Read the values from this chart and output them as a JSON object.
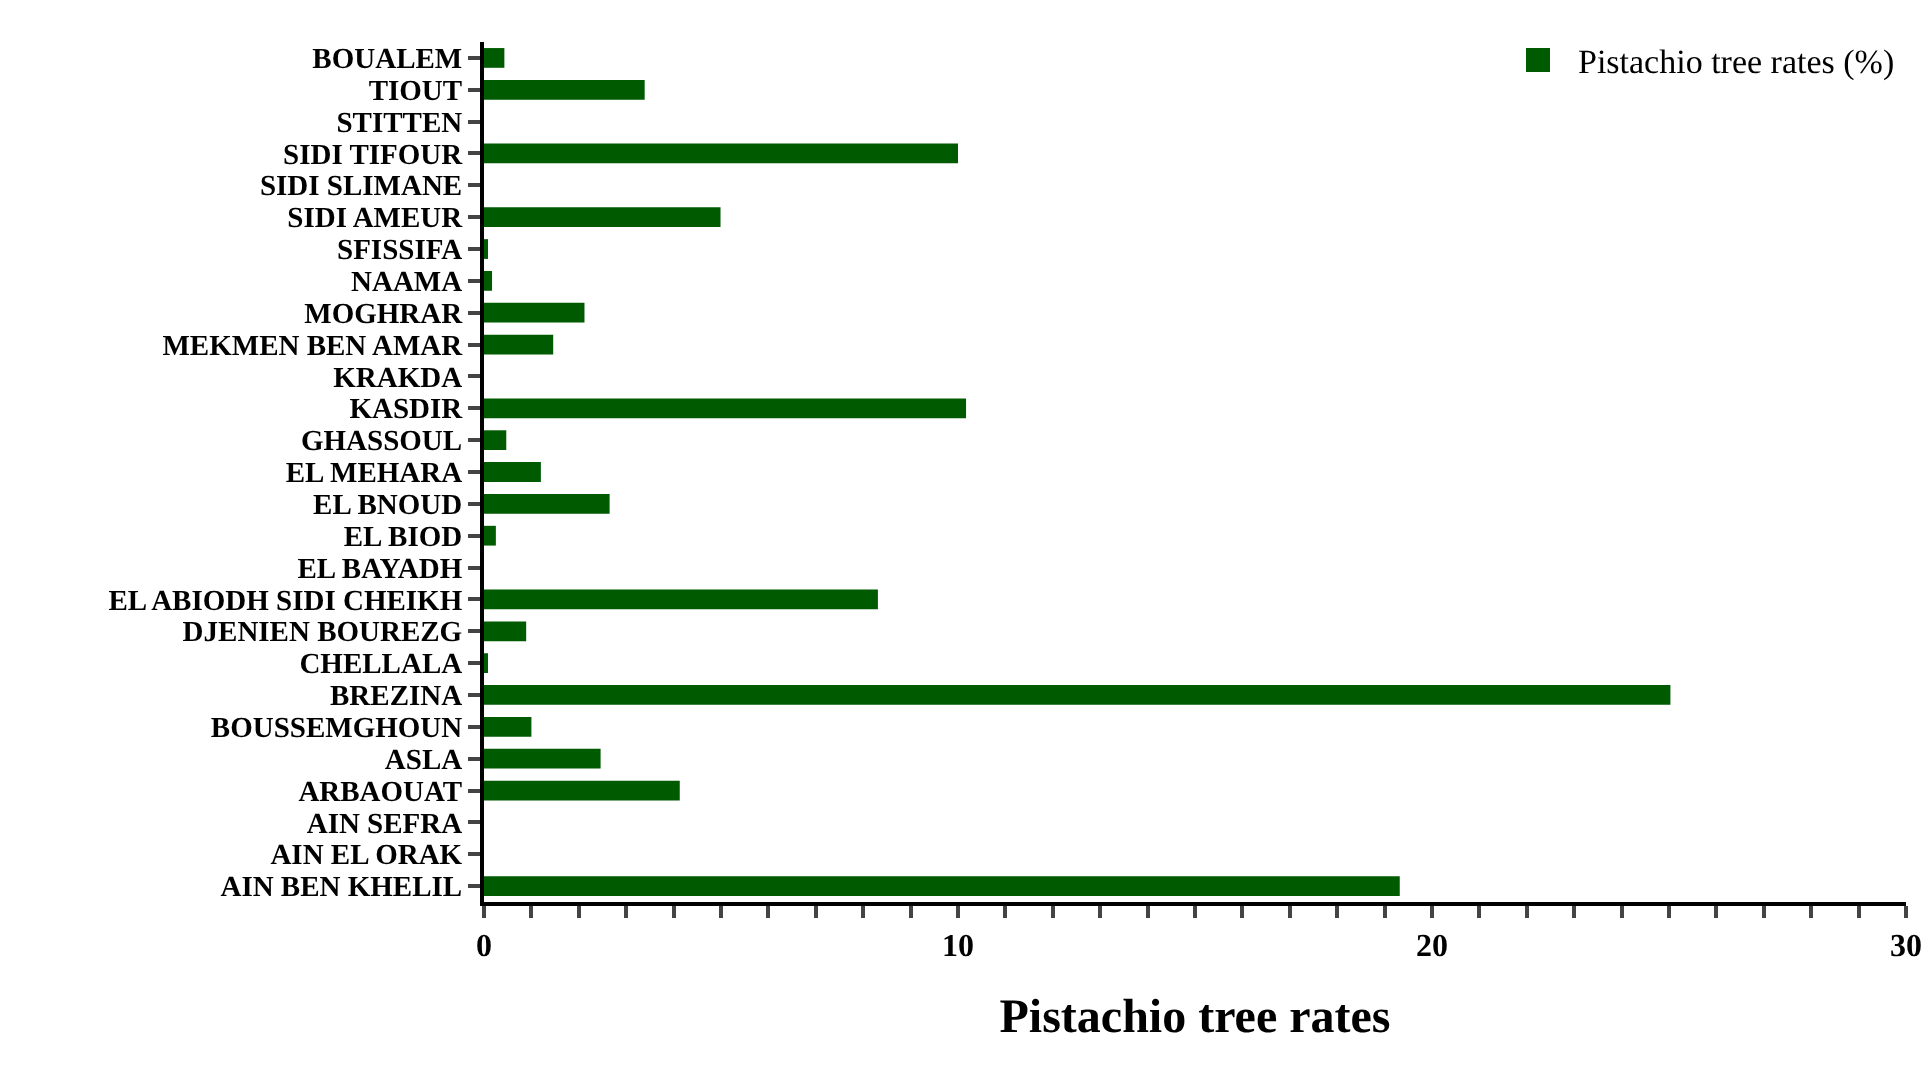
{
  "chart_data": {
    "type": "bar",
    "orientation": "horizontal",
    "xlabel": "Pistachio tree rates",
    "categories": [
      "BOUALEM",
      "TIOUT",
      "STITTEN",
      "SIDI TIFOUR",
      "SIDI SLIMANE",
      "SIDI AMEUR",
      "SFISSIFA",
      "NAAMA",
      "MOGHRAR",
      "MEKMEN BEN AMAR",
      "KRAKDA",
      "KASDIR",
      "GHASSOUL",
      "EL MEHARA",
      "EL BNOUD",
      "EL BIOD",
      "EL BAYADH",
      "EL ABIODH SIDI CHEIKH",
      "DJENIEN BOUREZG",
      "CHELLALA",
      "BREZINA",
      "BOUSSEMGHOUN",
      "ASLA",
      "ARBAOUAT",
      "AIN SEFRA",
      "AIN EL ORAK",
      "AIN BEN KHELIL"
    ],
    "series": [
      {
        "name": "Pistachio tree rates (%)",
        "color": "#005a00",
        "values": [
          0.43,
          3.39,
          0,
          10.0,
          0,
          4.99,
          0.05,
          0.17,
          2.12,
          1.46,
          0,
          10.17,
          0.47,
          1.2,
          2.65,
          0.25,
          0,
          8.31,
          0.89,
          0.05,
          25.03,
          1.0,
          2.46,
          4.13,
          0,
          0,
          19.32
        ]
      }
    ],
    "xlim": [
      0,
      30
    ],
    "xticks": [
      0,
      {
        "value": 1,
        "label": null
      },
      {
        "value": 2,
        "label": null
      },
      {
        "value": 3,
        "label": null
      },
      {
        "value": 4,
        "label": null
      },
      {
        "value": 5,
        "label": null
      },
      {
        "value": 6,
        "label": null
      },
      {
        "value": 7,
        "label": null
      },
      {
        "value": 8,
        "label": null
      },
      {
        "value": 9,
        "label": null
      },
      10,
      {
        "value": 11,
        "label": null
      },
      {
        "value": 12,
        "label": null
      },
      {
        "value": 13,
        "label": null
      },
      {
        "value": 14,
        "label": null
      },
      {
        "value": 15,
        "label": null
      },
      {
        "value": 16,
        "label": null
      },
      {
        "value": 17,
        "label": null
      },
      {
        "value": 18,
        "label": null
      },
      {
        "value": 19,
        "label": null
      },
      20,
      {
        "value": 21,
        "label": null
      },
      {
        "value": 22,
        "label": null
      },
      {
        "value": 23,
        "label": null
      },
      {
        "value": 24,
        "label": null
      },
      {
        "value": 25,
        "label": null
      },
      {
        "value": 26,
        "label": null
      },
      {
        "value": 27,
        "label": null
      },
      {
        "value": 28,
        "label": null
      },
      {
        "value": 29,
        "label": null
      },
      30
    ],
    "grid": false,
    "legend": "top right"
  }
}
